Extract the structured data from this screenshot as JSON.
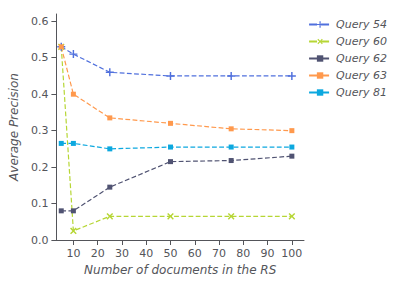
{
  "chart_data": {
    "type": "line",
    "xlabel": "Number of documents in the RS",
    "ylabel": "Average Precision",
    "x": [
      5,
      10,
      25,
      50,
      75,
      100
    ],
    "series": [
      {
        "name": "Query 54",
        "values": [
          0.53,
          0.51,
          0.46,
          0.45,
          0.45,
          0.45
        ],
        "marker": "plus",
        "line_style": "dashed"
      },
      {
        "name": "Query 60",
        "values": [
          0.53,
          0.025,
          0.065,
          0.065,
          0.065,
          0.065
        ],
        "marker": "cross",
        "line_style": "dashed"
      },
      {
        "name": "Query 62",
        "values": [
          0.08,
          0.08,
          0.145,
          0.215,
          0.218,
          0.23
        ],
        "marker": "square",
        "line_style": "dashed"
      },
      {
        "name": "Query 63",
        "values": [
          0.53,
          0.4,
          0.335,
          0.32,
          0.305,
          0.3
        ],
        "marker": "square",
        "line_style": "dashed"
      },
      {
        "name": "Query 81",
        "values": [
          0.265,
          0.265,
          0.25,
          0.255,
          0.255,
          0.255
        ],
        "marker": "square",
        "line_style": "dashed"
      }
    ],
    "xlim": [
      3,
      105
    ],
    "ylim": [
      0,
      0.62
    ],
    "xticks": [
      10,
      20,
      30,
      40,
      50,
      60,
      70,
      80,
      90,
      100
    ],
    "yticks": [
      {
        "value": 0,
        "label": "0.0"
      },
      0.1,
      0.2,
      0.3,
      0.4,
      0.5,
      0.6
    ],
    "grid": false,
    "legend": "upper right"
  }
}
